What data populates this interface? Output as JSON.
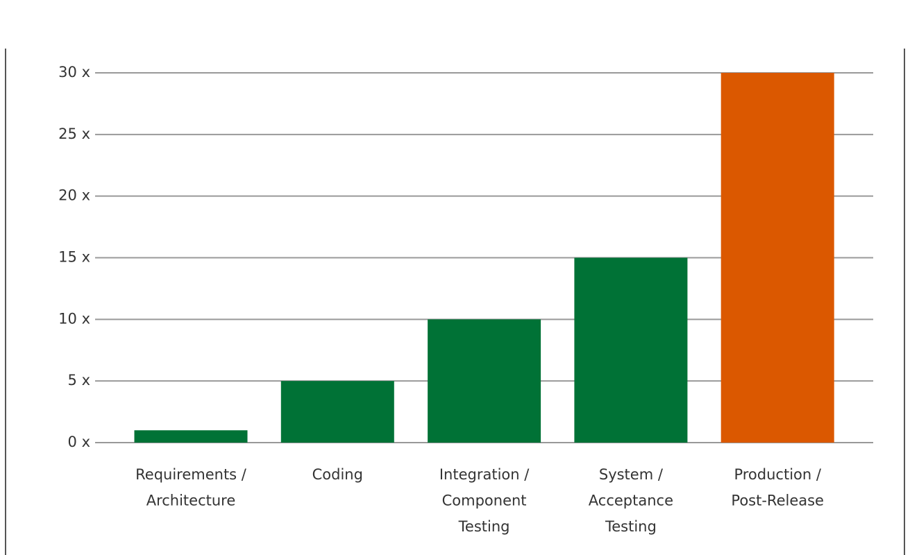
{
  "chart_data": {
    "type": "bar",
    "categories": [
      [
        "Requirements /",
        "Architecture"
      ],
      [
        "Coding"
      ],
      [
        "Integration /",
        "Component",
        "Testing"
      ],
      [
        "System /",
        "Acceptance",
        "Testing"
      ],
      [
        "Production /",
        "Post-Release"
      ]
    ],
    "values": [
      1,
      5,
      10,
      15,
      30
    ],
    "colors": [
      "#007236",
      "#007236",
      "#007236",
      "#007236",
      "#db5800"
    ],
    "ylim": [
      0,
      30
    ],
    "yticks": [
      {
        "value": 0,
        "label": "0 x"
      },
      {
        "value": 5,
        "label": "5 x"
      },
      {
        "value": 10,
        "label": "10 x"
      },
      {
        "value": 15,
        "label": "15 x"
      },
      {
        "value": 20,
        "label": "20 x"
      },
      {
        "value": 25,
        "label": "25 x"
      },
      {
        "value": 30,
        "label": "30 x"
      }
    ],
    "grid": true
  }
}
